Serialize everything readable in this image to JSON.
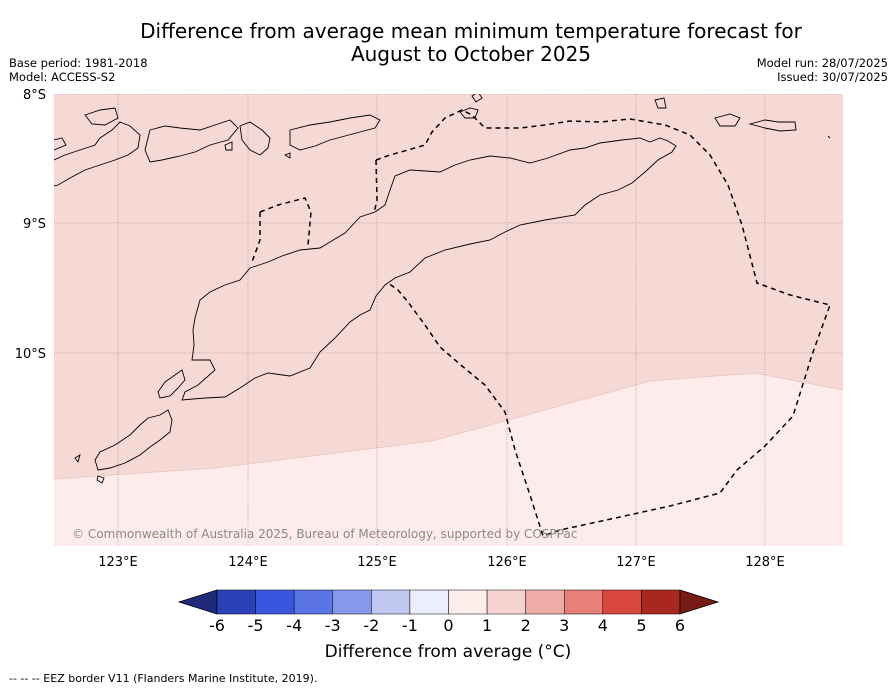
{
  "title_line1": "Difference from average mean minimum temperature forecast for",
  "title_line2": "August to October 2025",
  "meta": {
    "base_period": "Base period: 1981-2018",
    "model": "Model: ACCESS-S2",
    "model_run": "Model run: 28/07/2025",
    "issued": "Issued: 30/07/2025"
  },
  "lat_labels": [
    "8°S",
    "9°S",
    "10°S"
  ],
  "lon_labels": [
    "123°E",
    "124°E",
    "125°E",
    "126°E",
    "127°E",
    "128°E"
  ],
  "copyright": "© Commonwealth of Australia 2025, Bureau of Meteorology, supported by COSPPac",
  "colorbar": {
    "ticks": [
      "-6",
      "-5",
      "-4",
      "-3",
      "-2",
      "-1",
      "0",
      "1",
      "2",
      "3",
      "4",
      "5",
      "6"
    ],
    "colors": [
      "#1f2a7a",
      "#2a41b8",
      "#3a55e0",
      "#5b74e6",
      "#8698ea",
      "#c0c8f2",
      "#eceefb",
      "#fcecea",
      "#f6d3d0",
      "#eeaca6",
      "#e68078",
      "#d9483e",
      "#a8281f",
      "#7a1a14"
    ],
    "label": "Difference from average (°C)"
  },
  "field": {
    "range_0_1_color": "#f6d8d5",
    "range_minus1_0_color": "#fdeceb",
    "boundary_description": "upper region 1 to 2 °C anomaly class fill, lower region 0 to 1 °C class fill"
  },
  "legend_note": "--  --  -- EEZ border V11 (Flanders Marine Institute, 2019)."
}
